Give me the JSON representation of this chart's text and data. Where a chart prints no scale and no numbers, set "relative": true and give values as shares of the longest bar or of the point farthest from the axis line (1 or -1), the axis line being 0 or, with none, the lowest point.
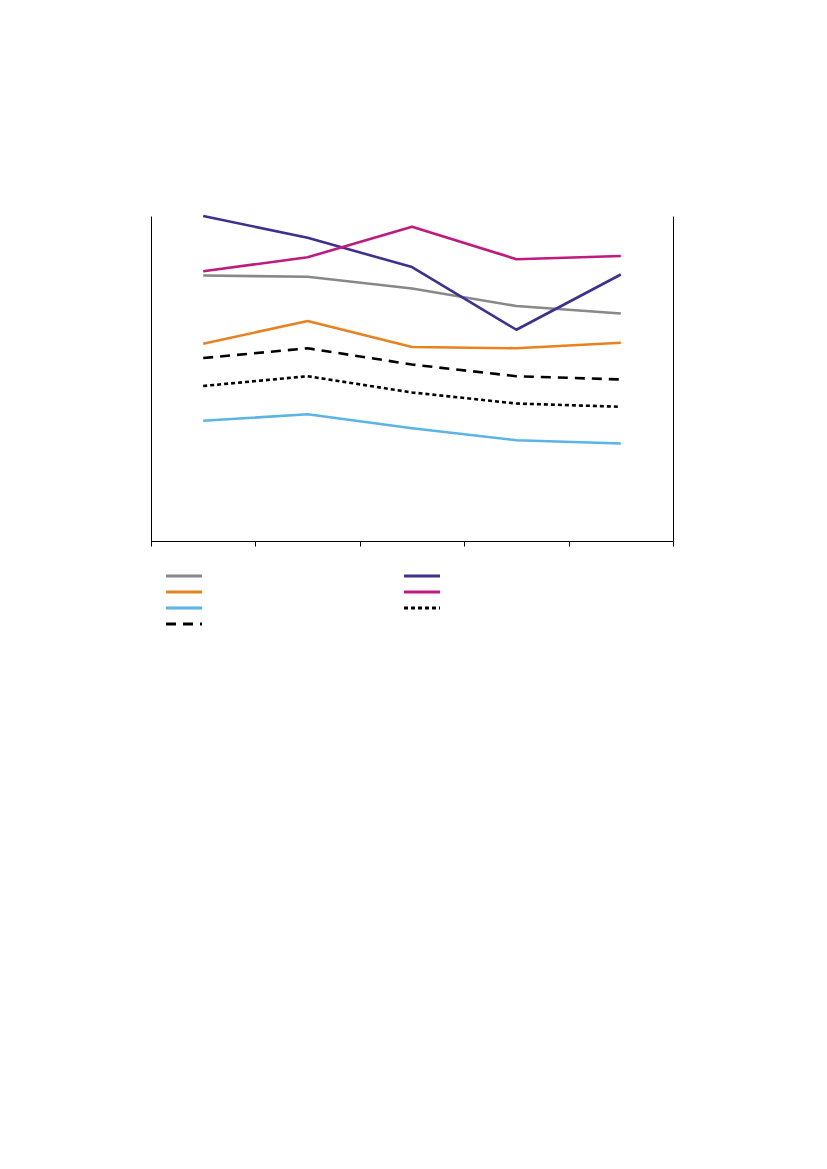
{
  "chart_data": {
    "type": "line",
    "relative": true,
    "categories": [
      null,
      null,
      null,
      null,
      null
    ],
    "line_style": "solid",
    "series": [
      {
        "color": "#888888",
        "values": [
          0.817,
          0.813,
          0.777,
          0.723,
          0.7
        ]
      },
      {
        "color": "#e8821f",
        "values": [
          0.607,
          0.677,
          0.597,
          0.593,
          0.61
        ]
      },
      {
        "color": "#5ab4e6",
        "values": [
          0.37,
          0.39,
          0.347,
          0.31,
          0.3
        ]
      },
      {
        "color": "#000000",
        "line_style": "dashed",
        "values": [
          0.563,
          0.593,
          0.543,
          0.507,
          0.497
        ]
      },
      {
        "color": "#3f2f8f",
        "values": [
          1,
          0.933,
          0.843,
          0.65,
          0.82
        ]
      },
      {
        "color": "#c0197f",
        "values": [
          0.83,
          0.873,
          0.967,
          0.867,
          0.877
        ]
      },
      {
        "color": "#000000",
        "line_style": "dotted",
        "values": [
          0.477,
          0.507,
          0.457,
          0.423,
          0.413
        ]
      }
    ]
  }
}
